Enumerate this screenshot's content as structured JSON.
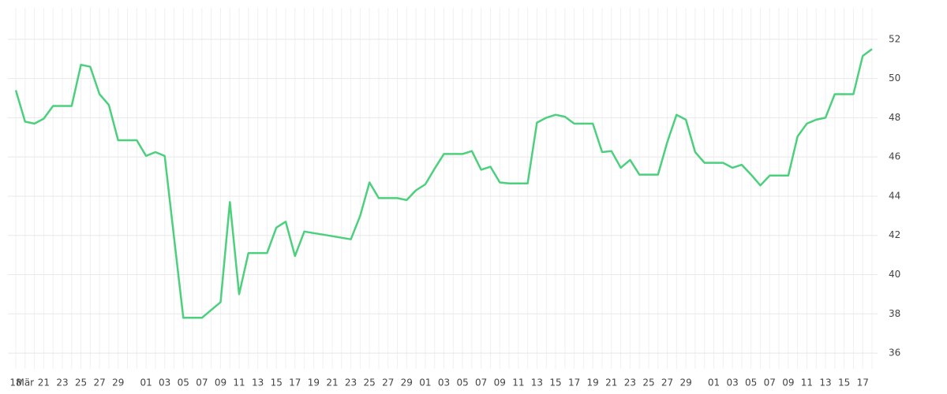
{
  "chart_data": {
    "type": "line",
    "categories": [
      "18",
      "Mär",
      null,
      "21",
      null,
      "23",
      null,
      "25",
      null,
      "27",
      null,
      "29",
      null,
      null,
      "01",
      null,
      "03",
      null,
      "05",
      null,
      "07",
      null,
      "09",
      null,
      "11",
      null,
      "13",
      null,
      "15",
      null,
      "17",
      null,
      "19",
      null,
      "21",
      null,
      "23",
      null,
      "25",
      null,
      "27",
      null,
      "29",
      null,
      "01",
      null,
      "03",
      null,
      "05",
      null,
      "07",
      null,
      "09",
      null,
      "11",
      null,
      "13",
      null,
      "15",
      null,
      "17",
      null,
      "19",
      null,
      "21",
      null,
      "23",
      null,
      "25",
      null,
      "27",
      null,
      "29",
      null,
      null,
      "01",
      null,
      "03",
      null,
      "05",
      null,
      "07",
      null,
      "09",
      null,
      "11",
      null,
      "13",
      null,
      "15",
      null,
      "17",
      null
    ],
    "series": [
      {
        "color": "#4cd07d",
        "values": [
          49.4,
          47.8,
          47.7,
          47.95,
          48.6,
          48.6,
          48.6,
          50.7,
          50.6,
          49.2,
          48.65,
          46.85,
          46.85,
          46.85,
          46.05,
          46.25,
          46.05,
          41.9,
          37.8,
          37.8,
          37.8,
          38.2,
          38.6,
          43.7,
          39.0,
          41.1,
          41.1,
          41.1,
          42.4,
          42.7,
          40.95,
          42.2,
          42.12,
          42.04,
          41.96,
          41.88,
          41.8,
          43.0,
          44.7,
          43.9,
          43.9,
          43.9,
          43.8,
          44.3,
          44.6,
          45.4,
          46.15,
          46.15,
          46.15,
          46.3,
          45.35,
          45.5,
          44.7,
          44.65,
          44.65,
          44.65,
          47.75,
          48.0,
          48.15,
          48.05,
          47.7,
          47.7,
          47.7,
          46.25,
          46.3,
          45.45,
          45.85,
          45.1,
          45.1,
          45.1,
          46.75,
          48.15,
          47.9,
          46.25,
          45.7,
          45.7,
          45.7,
          45.45,
          45.6,
          45.1,
          44.55,
          45.05,
          45.05,
          45.05,
          47.05,
          47.7,
          47.9,
          48.0,
          49.2,
          49.2,
          49.2,
          51.15,
          51.5
        ]
      }
    ],
    "ylim": [
      35.2,
      53.6
    ],
    "yticks": [
      36,
      38,
      40,
      42,
      44,
      46,
      48,
      50,
      52
    ],
    "grid": true
  }
}
